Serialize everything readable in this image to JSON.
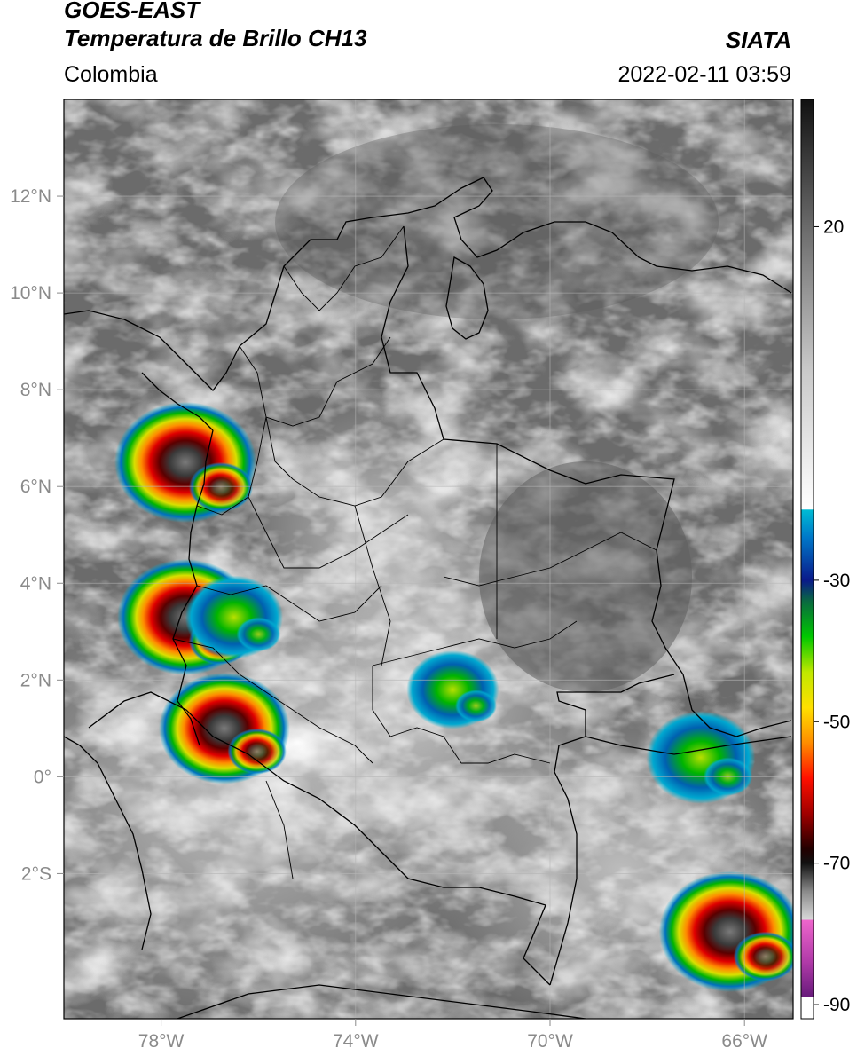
{
  "header": {
    "satellite": "GOES-EAST",
    "product": "Temperatura de Brillo CH13",
    "institution": "SIATA",
    "region": "Colombia",
    "timestamp": "2022-02-11 03:59"
  },
  "map": {
    "lon_range": [
      -80,
      -65
    ],
    "lat_range": [
      -5,
      14
    ],
    "lon_ticks": [
      {
        "value": -78,
        "label": "78°W"
      },
      {
        "value": -74,
        "label": "74°W"
      },
      {
        "value": -70,
        "label": "70°W"
      },
      {
        "value": -66,
        "label": "66°W"
      }
    ],
    "lat_ticks": [
      {
        "value": 12,
        "label": "12°N"
      },
      {
        "value": 10,
        "label": "10°N"
      },
      {
        "value": 8,
        "label": "8°N"
      },
      {
        "value": 6,
        "label": "6°N"
      },
      {
        "value": 4,
        "label": "4°N"
      },
      {
        "value": 2,
        "label": "2°N"
      },
      {
        "value": 0,
        "label": "0°"
      },
      {
        "value": -2,
        "label": "2°S"
      }
    ],
    "gridlines": true,
    "storms": [
      {
        "name": "storm-uraba",
        "lon": -77.5,
        "lat": 6.5,
        "intensity": 1.0
      },
      {
        "name": "storm-pacific-west",
        "lon": -77.5,
        "lat": 3.3,
        "intensity": 0.95
      },
      {
        "name": "storm-pacific-central",
        "lon": -76.5,
        "lat": 3.3,
        "intensity": 0.6
      },
      {
        "name": "storm-narino",
        "lon": -76.7,
        "lat": 1.0,
        "intensity": 0.9
      },
      {
        "name": "storm-guaviare",
        "lon": -72.0,
        "lat": 1.8,
        "intensity": 0.55
      },
      {
        "name": "storm-amazonas-east",
        "lon": -66.3,
        "lat": -3.2,
        "intensity": 1.0
      },
      {
        "name": "storm-east-small",
        "lon": -66.9,
        "lat": 0.4,
        "intensity": 0.7
      }
    ]
  },
  "colorbar": {
    "range": [
      -92,
      38
    ],
    "ticks": [
      {
        "value": 20,
        "label": "20"
      },
      {
        "value": -30,
        "label": "-30"
      },
      {
        "value": -50,
        "label": "-50"
      },
      {
        "value": -70,
        "label": "-70"
      },
      {
        "value": -90,
        "label": "-90"
      }
    ],
    "stops": [
      {
        "value": 38,
        "color": "#111111"
      },
      {
        "value": 20,
        "color": "#6a6a6a"
      },
      {
        "value": 0,
        "color": "#c8c8c8"
      },
      {
        "value": -20,
        "color": "#ffffff"
      },
      {
        "value": -20.01,
        "color": "#00bcd4"
      },
      {
        "value": -24,
        "color": "#0077c8"
      },
      {
        "value": -30,
        "color": "#0a1a8a"
      },
      {
        "value": -33,
        "color": "#0a6a40"
      },
      {
        "value": -38,
        "color": "#00c800"
      },
      {
        "value": -43,
        "color": "#c0e800"
      },
      {
        "value": -48,
        "color": "#ffe000"
      },
      {
        "value": -53,
        "color": "#ff8c00"
      },
      {
        "value": -58,
        "color": "#ff1000"
      },
      {
        "value": -63,
        "color": "#a00000"
      },
      {
        "value": -68,
        "color": "#220000"
      },
      {
        "value": -70,
        "color": "#111111"
      },
      {
        "value": -74,
        "color": "#8a8a8a"
      },
      {
        "value": -78,
        "color": "#d9d9d9"
      },
      {
        "value": -78.01,
        "color": "#ee66cc"
      },
      {
        "value": -84,
        "color": "#b03aa8"
      },
      {
        "value": -89,
        "color": "#661a7a"
      },
      {
        "value": -89.01,
        "color": "#ffffff"
      },
      {
        "value": -92,
        "color": "#ffffff"
      }
    ]
  }
}
